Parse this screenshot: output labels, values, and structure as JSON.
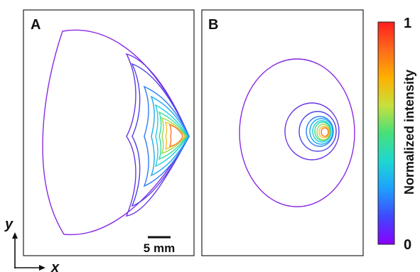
{
  "panels": {
    "a": {
      "label": "A"
    },
    "b": {
      "label": "B"
    }
  },
  "axes": {
    "y_label": "y",
    "x_label": "x"
  },
  "scale_bar": {
    "label": "5 mm"
  },
  "colorbar": {
    "title": "Normalized intensity",
    "max_label": "1",
    "min_label": "0",
    "colors": [
      "#8b00ff",
      "#3f48ff",
      "#1ea0ff",
      "#1ed8d0",
      "#46e07a",
      "#c8e03c",
      "#ffb000",
      "#ff6a1a",
      "#ff1e1e"
    ]
  },
  "contour_levels": {
    "a": [
      {
        "level": 0.05,
        "color": "#8a2be2"
      },
      {
        "level": 0.12,
        "color": "#6a35e0"
      },
      {
        "level": 0.2,
        "color": "#4b44e6"
      },
      {
        "level": 0.3,
        "color": "#2b7ef0"
      },
      {
        "level": 0.4,
        "color": "#1ea8f5"
      },
      {
        "level": 0.5,
        "color": "#1ed0d8"
      },
      {
        "level": 0.6,
        "color": "#30dca0"
      },
      {
        "level": 0.7,
        "color": "#9ad84a"
      },
      {
        "level": 0.8,
        "color": "#f0c030"
      },
      {
        "level": 0.9,
        "color": "#ff7a24"
      }
    ],
    "b": [
      {
        "level": 0.05,
        "color": "#8a2be2"
      },
      {
        "level": 0.15,
        "color": "#6a35e0"
      },
      {
        "level": 0.25,
        "color": "#4b44e6"
      },
      {
        "level": 0.35,
        "color": "#2b7ef0"
      },
      {
        "level": 0.45,
        "color": "#1ea8f5"
      },
      {
        "level": 0.55,
        "color": "#1ed0d8"
      },
      {
        "level": 0.65,
        "color": "#30dca0"
      },
      {
        "level": 0.75,
        "color": "#9ad84a"
      },
      {
        "level": 0.85,
        "color": "#f0c030"
      },
      {
        "level": 0.95,
        "color": "#ff7a24"
      }
    ]
  }
}
